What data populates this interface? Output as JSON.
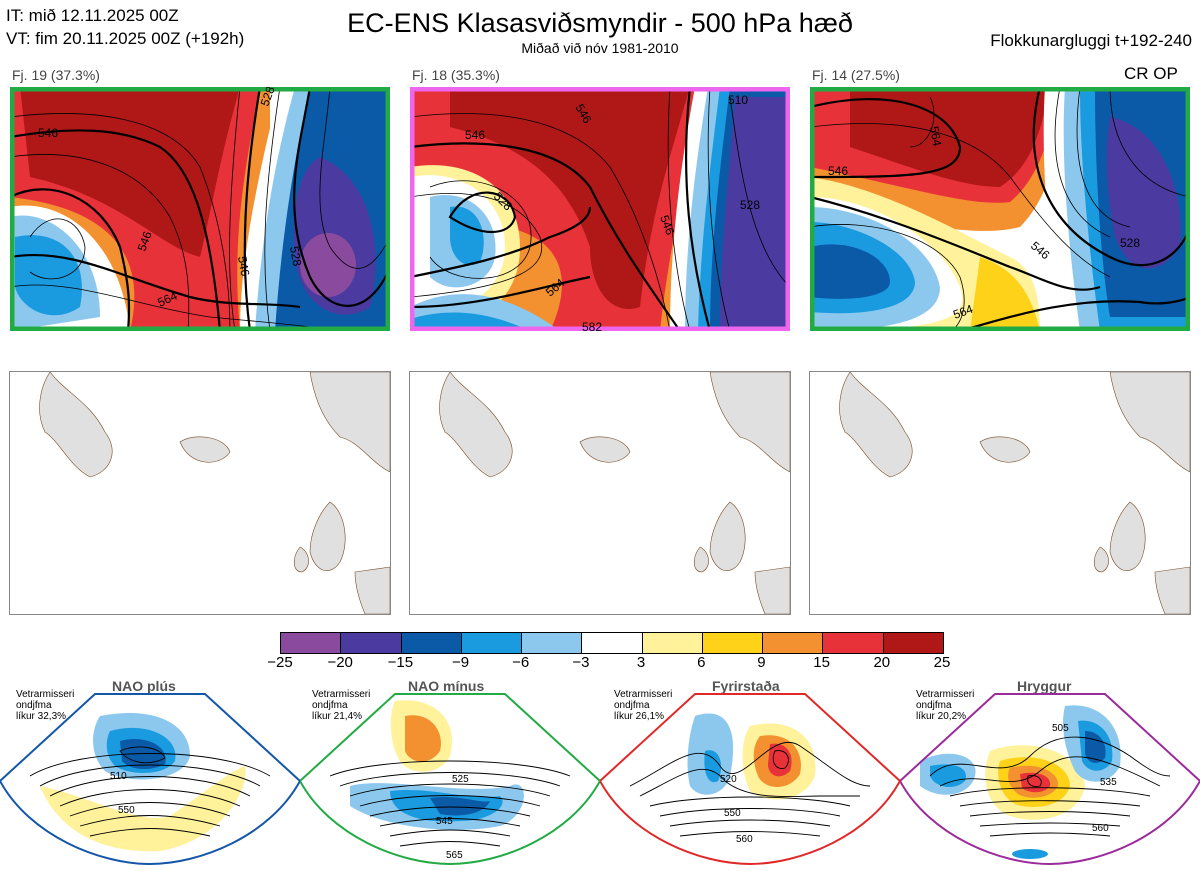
{
  "header": {
    "init_time": "IT: mið 12.11.2025 00Z",
    "valid_time": "VT: fim 20.11.2025 00Z  (+192h)",
    "title": "EC-ENS Klasasviðsmyndir - 500 hPa hæð",
    "subtitle": "Miðað við nóv 1981-2010",
    "window": "Flokkunargluggi t+192-240"
  },
  "clusters": [
    {
      "label": "Fj. 19 (37.3%)",
      "frame_color": "#22aa44",
      "contours": [
        "546",
        "528",
        "546",
        "528",
        "546",
        "564"
      ]
    },
    {
      "label": "Fj. 18 (35.3%)",
      "frame_color": "#ee66ee",
      "contours": [
        "546",
        "528",
        "546",
        "510",
        "528",
        "546",
        "564",
        "582"
      ]
    },
    {
      "label": "Fj. 14 (27.5%)",
      "frame_color": "#22aa44",
      "contours": [
        "564",
        "546",
        "528",
        "546",
        "564"
      ],
      "tag": "CR OP"
    }
  ],
  "colorbar": {
    "ticks": [
      "−25",
      "−20",
      "−15",
      "−9",
      "−6",
      "−3",
      "3",
      "6",
      "9",
      "15",
      "20",
      "25"
    ],
    "colors": [
      "#8a4a9e",
      "#4b3aa0",
      "#0b5aa8",
      "#1a9be0",
      "#8cc8ee",
      "#ffffff",
      "#fff29a",
      "#ffd21a",
      "#f39030",
      "#e8323a",
      "#b01818"
    ]
  },
  "regimes": [
    {
      "title": "NAO plús",
      "note": [
        "Vetrarmisseri",
        "ondjfma",
        "líkur 32,3%"
      ],
      "color": "#1456a8",
      "contours": [
        "510",
        "550"
      ]
    },
    {
      "title": "NAO mínus",
      "note": [
        "Vetrarmisseri",
        "ondjfma",
        "líkur 21,4%"
      ],
      "color": "#22aa44",
      "contours": [
        "525",
        "545",
        "565"
      ]
    },
    {
      "title": "Fyrirstaða",
      "note": [
        "Vetrarmisseri",
        "ondjfma",
        "líkur 26,1%"
      ],
      "color": "#e02828",
      "contours": [
        "520",
        "550",
        "560"
      ]
    },
    {
      "title": "Hryggur",
      "note": [
        "Vetrarmisseri",
        "ondjfma",
        "líkur 20,2%"
      ],
      "color": "#ee66ee",
      "contours": [
        "505",
        "535",
        "560"
      ]
    }
  ]
}
